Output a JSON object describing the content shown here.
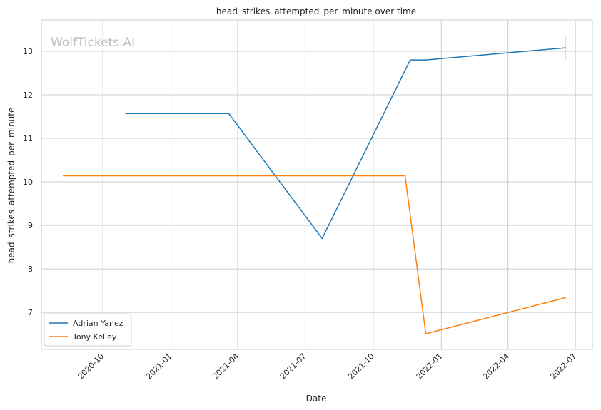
{
  "watermark": "WolfTickets.AI",
  "chart_data": {
    "type": "line",
    "title": "head_strikes_attempted_per_minute over time",
    "xlabel": "Date",
    "ylabel": "head_strikes_attempted_per_minute",
    "x_tick_labels": [
      "2020-10",
      "2021-01",
      "2021-04",
      "2021-07",
      "2021-10",
      "2022-01",
      "2022-04",
      "2022-07"
    ],
    "x_ticks": [
      "2020-10-01",
      "2021-01-01",
      "2021-04-01",
      "2021-07-01",
      "2021-10-01",
      "2022-01-01",
      "2022-04-01",
      "2022-07-01"
    ],
    "y_ticks": [
      7,
      8,
      9,
      10,
      11,
      12,
      13
    ],
    "xlim": [
      "2020-07-10",
      "2022-07-24"
    ],
    "ylim": [
      6.15,
      13.72
    ],
    "grid": true,
    "legend_position": "lower-left",
    "series": [
      {
        "name": "Adrian Yanez",
        "color": "#1f77b4",
        "x": [
          "2020-10-31",
          "2021-03-20",
          "2021-07-24",
          "2021-11-20",
          "2021-12-11",
          "2022-06-18"
        ],
        "y": [
          11.57,
          11.57,
          8.7,
          12.8,
          12.8,
          13.08
        ]
      },
      {
        "name": "Tony Kelley",
        "color": "#ff7f0e",
        "x": [
          "2020-08-08",
          "2021-11-13",
          "2021-12-11",
          "2022-06-18"
        ],
        "y": [
          10.14,
          10.14,
          6.51,
          7.34
        ]
      }
    ],
    "annotations": [
      {
        "type": "error_bar",
        "x": "2022-06-18",
        "ylow": 12.8,
        "yhigh": 13.36,
        "color": "#1f77b4"
      }
    ]
  }
}
